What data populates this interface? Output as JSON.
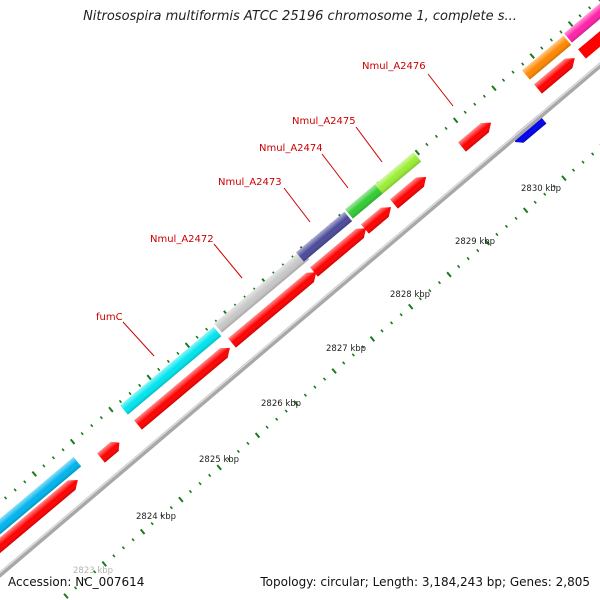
{
  "title": "Nitrosospira multiformis ATCC 25196 chromosome 1, complete s...",
  "accession": "Accession: NC_007614",
  "topology": "Topology: circular; Length: 3,184,243 bp; Genes: 2,805",
  "colors": {
    "backbone": "#b0b0b0",
    "tick": "#1a7a1a",
    "label": "#cc0000",
    "cds_forward": "#ff0000"
  },
  "gene_labels": [
    {
      "text": "Nmul_A2476"
    },
    {
      "text": "Nmul_A2475"
    },
    {
      "text": "Nmul_A2474"
    },
    {
      "text": "Nmul_A2473"
    },
    {
      "text": "Nmul_A2472"
    },
    {
      "text": "fumC"
    }
  ],
  "kbp_labels": [
    {
      "text": "2830 kbp"
    },
    {
      "text": "2829 kbp"
    },
    {
      "text": "2828 kbp"
    },
    {
      "text": "2827 kbp"
    },
    {
      "text": "2826 kbp"
    },
    {
      "text": "2825 kbp"
    },
    {
      "text": "2824 kbp"
    },
    {
      "text": "2823 kbp"
    }
  ],
  "outer_features": [
    {
      "name": "cyan-gene-left",
      "color": "#00b4ee"
    },
    {
      "name": "fumC",
      "color": "#00e5ee"
    },
    {
      "name": "Nmul_A2472",
      "color": "#c8c8c8"
    },
    {
      "name": "Nmul_A2473",
      "color": "#4a4a9a"
    },
    {
      "name": "Nmul_A2474",
      "color": "#33cc33"
    },
    {
      "name": "Nmul_A2475",
      "color": "#99ee33"
    },
    {
      "name": "orange-gene",
      "color": "#ff8800"
    },
    {
      "name": "magenta-gene",
      "color": "#ff22aa"
    }
  ],
  "mid_features": [
    {
      "name": "red-small-left",
      "color": "#ff0000"
    },
    {
      "name": "Nmul_A2476",
      "color": "#ff0000"
    },
    {
      "name": "blue-small",
      "color": "#0000ee"
    }
  ]
}
